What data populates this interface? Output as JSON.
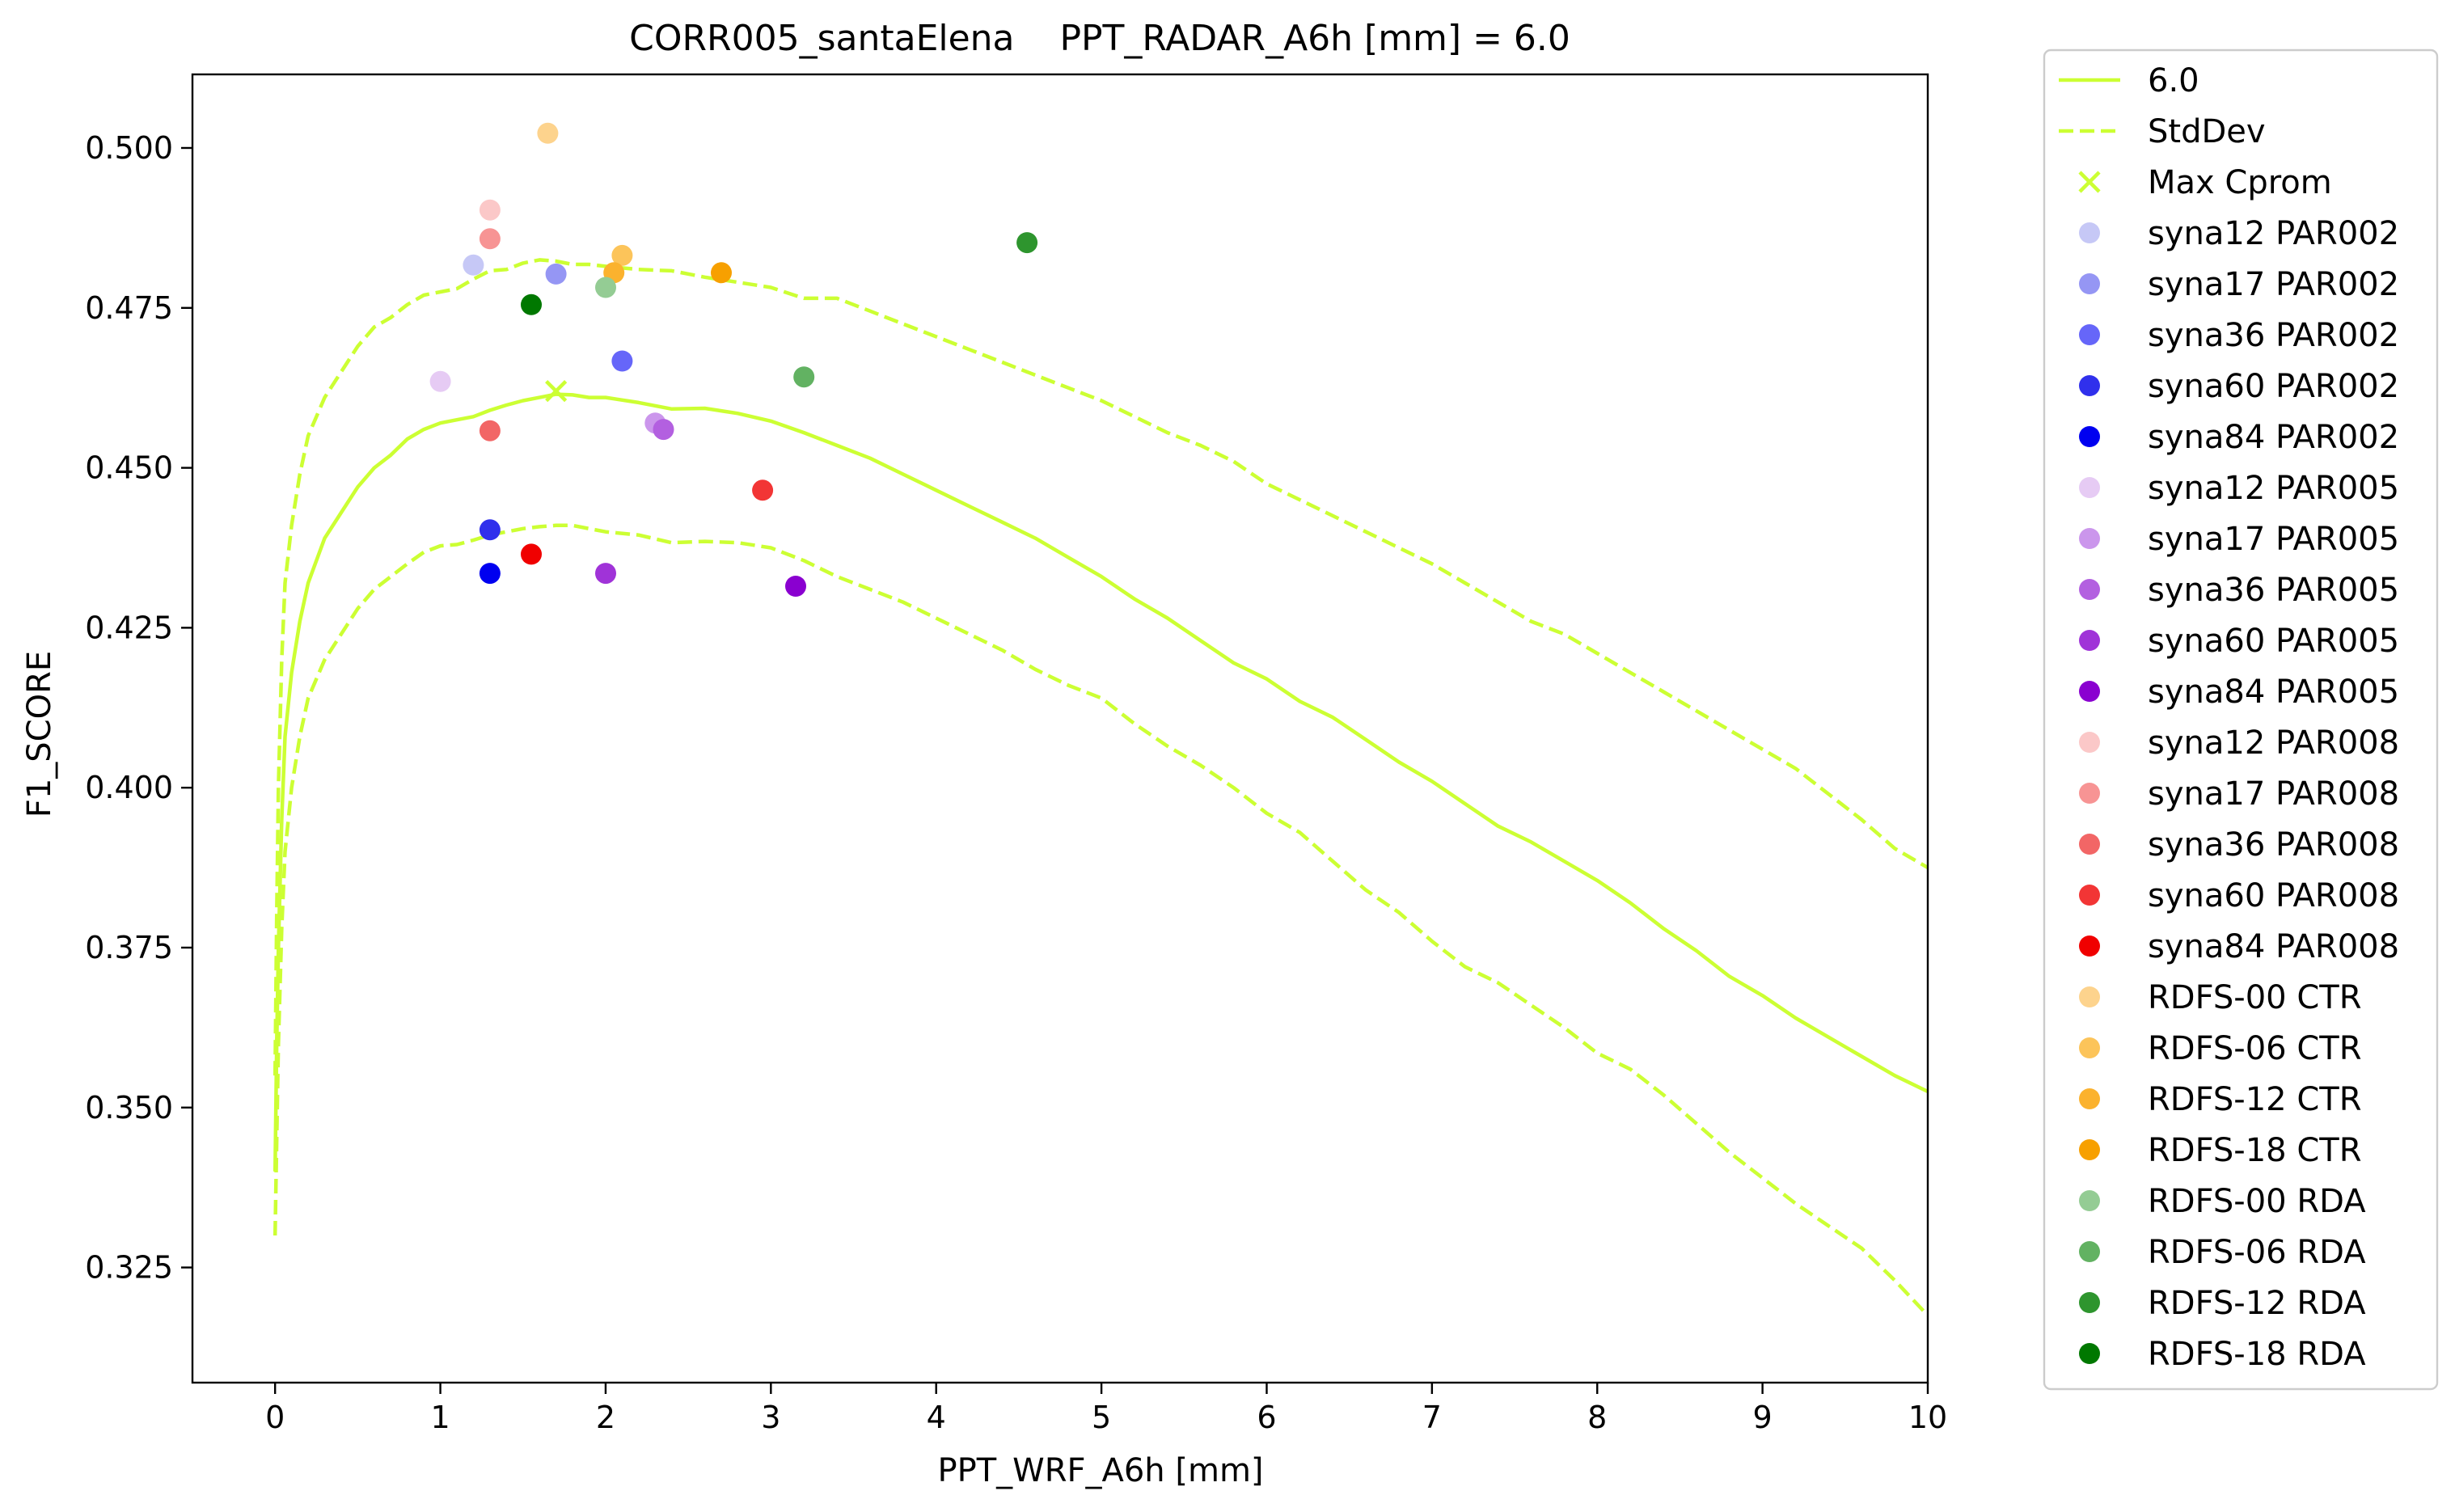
{
  "chart_data": {
    "type": "line",
    "title": "CORR005_santaElena    PPT_RADAR_A6h [mm] = 6.0",
    "xlabel": "PPT_WRF_A6h [mm]",
    "ylabel": "F1_SCORE",
    "xlim": [
      -0.5,
      10
    ],
    "ylim": [
      0.307,
      0.5115
    ],
    "xticks": [
      0,
      1,
      2,
      3,
      4,
      5,
      6,
      7,
      8,
      9,
      10
    ],
    "yticks": [
      0.325,
      0.35,
      0.375,
      0.4,
      0.425,
      0.45,
      0.475,
      0.5
    ],
    "ytick_labels": [
      "0.325",
      "0.350",
      "0.375",
      "0.400",
      "0.425",
      "0.450",
      "0.475",
      "0.500"
    ],
    "legend_position": "outside-right",
    "grid": false,
    "line_color": "#ccff33",
    "series": [
      {
        "name": "6.0",
        "style": "solid",
        "x": [
          0,
          0.01,
          0.02,
          0.04,
          0.06,
          0.1,
          0.15,
          0.2,
          0.3,
          0.4,
          0.5,
          0.6,
          0.7,
          0.8,
          0.9,
          1.0,
          1.1,
          1.2,
          1.3,
          1.4,
          1.5,
          1.6,
          1.7,
          1.8,
          1.9,
          2.0,
          2.2,
          2.4,
          2.6,
          2.8,
          3.0,
          3.2,
          3.4,
          3.6,
          3.8,
          4.0,
          4.2,
          4.4,
          4.6,
          4.8,
          5.0,
          5.2,
          5.4,
          5.6,
          5.8,
          6.0,
          6.2,
          6.4,
          6.6,
          6.8,
          7.0,
          7.2,
          7.4,
          7.6,
          7.8,
          8.0,
          8.2,
          8.4,
          8.6,
          8.8,
          9.0,
          9.2,
          9.4,
          9.6,
          9.8,
          10.0
        ],
        "y": [
          0.34,
          0.36,
          0.375,
          0.395,
          0.408,
          0.418,
          0.426,
          0.432,
          0.439,
          0.443,
          0.447,
          0.45,
          0.452,
          0.4545,
          0.456,
          0.457,
          0.4575,
          0.458,
          0.459,
          0.4598,
          0.4605,
          0.461,
          0.4615,
          0.4614,
          0.461,
          0.461,
          0.4602,
          0.4592,
          0.4593,
          0.4585,
          0.4573,
          0.4555,
          0.4535,
          0.4515,
          0.449,
          0.4465,
          0.444,
          0.4415,
          0.439,
          0.436,
          0.433,
          0.4295,
          0.4265,
          0.423,
          0.4195,
          0.417,
          0.4135,
          0.411,
          0.4075,
          0.404,
          0.401,
          0.3975,
          0.394,
          0.3915,
          0.3885,
          0.3855,
          0.382,
          0.378,
          0.3745,
          0.3705,
          0.3675,
          0.364,
          0.361,
          0.358,
          0.355,
          0.3525
        ]
      },
      {
        "name": "StdDev",
        "style": "dashed",
        "x": [
          0,
          0.01,
          0.02,
          0.04,
          0.06,
          0.1,
          0.15,
          0.2,
          0.3,
          0.4,
          0.5,
          0.6,
          0.7,
          0.8,
          0.9,
          1.0,
          1.1,
          1.2,
          1.3,
          1.4,
          1.5,
          1.6,
          1.7,
          1.8,
          1.9,
          2.0,
          2.2,
          2.4,
          2.6,
          2.8,
          3.0,
          3.2,
          3.4,
          3.6,
          3.8,
          4.0,
          4.2,
          4.4,
          4.6,
          4.8,
          5.0,
          5.2,
          5.4,
          5.6,
          5.8,
          6.0,
          6.2,
          6.4,
          6.6,
          6.8,
          7.0,
          7.2,
          7.4,
          7.6,
          7.8,
          8.0,
          8.2,
          8.4,
          8.6,
          8.8,
          9.0,
          9.2,
          9.4,
          9.6,
          9.8,
          10.0
        ],
        "y": [
          0.355,
          0.38,
          0.4,
          0.42,
          0.432,
          0.441,
          0.449,
          0.455,
          0.461,
          0.465,
          0.469,
          0.472,
          0.4735,
          0.4755,
          0.477,
          0.4775,
          0.478,
          0.4795,
          0.4808,
          0.481,
          0.482,
          0.4825,
          0.4823,
          0.4818,
          0.4818,
          0.4815,
          0.481,
          0.4808,
          0.4798,
          0.479,
          0.4782,
          0.4765,
          0.4765,
          0.4745,
          0.4725,
          0.4705,
          0.4685,
          0.4665,
          0.4645,
          0.4625,
          0.4605,
          0.458,
          0.4555,
          0.4535,
          0.451,
          0.4475,
          0.445,
          0.4425,
          0.44,
          0.4375,
          0.435,
          0.432,
          0.429,
          0.426,
          0.424,
          0.421,
          0.418,
          0.415,
          0.412,
          0.409,
          0.406,
          0.403,
          0.399,
          0.395,
          0.3905,
          0.3875
        ]
      },
      {
        "name": "StdDev (lower)",
        "style": "dashed",
        "x": [
          0,
          0.01,
          0.02,
          0.04,
          0.06,
          0.1,
          0.15,
          0.2,
          0.3,
          0.4,
          0.5,
          0.6,
          0.7,
          0.8,
          0.9,
          1.0,
          1.1,
          1.2,
          1.3,
          1.4,
          1.5,
          1.6,
          1.7,
          1.8,
          1.9,
          2.0,
          2.2,
          2.4,
          2.6,
          2.8,
          3.0,
          3.2,
          3.4,
          3.6,
          3.8,
          4.0,
          4.2,
          4.4,
          4.6,
          4.8,
          5.0,
          5.2,
          5.4,
          5.6,
          5.8,
          6.0,
          6.2,
          6.4,
          6.6,
          6.8,
          7.0,
          7.2,
          7.4,
          7.6,
          7.8,
          8.0,
          8.2,
          8.4,
          8.6,
          8.8,
          9.0,
          9.2,
          9.4,
          9.6,
          9.8,
          10.0
        ],
        "y": [
          0.33,
          0.345,
          0.36,
          0.378,
          0.39,
          0.4,
          0.408,
          0.414,
          0.42,
          0.424,
          0.428,
          0.431,
          0.433,
          0.435,
          0.4368,
          0.4378,
          0.438,
          0.4387,
          0.4395,
          0.44,
          0.4405,
          0.4408,
          0.441,
          0.441,
          0.4405,
          0.44,
          0.4395,
          0.4383,
          0.4385,
          0.4383,
          0.4375,
          0.4355,
          0.433,
          0.431,
          0.429,
          0.4265,
          0.424,
          0.4215,
          0.4185,
          0.416,
          0.414,
          0.41,
          0.4065,
          0.4035,
          0.4,
          0.396,
          0.393,
          0.3885,
          0.384,
          0.3805,
          0.376,
          0.372,
          0.3695,
          0.366,
          0.3625,
          0.3585,
          0.356,
          0.352,
          0.3475,
          0.343,
          0.339,
          0.335,
          0.3315,
          0.328,
          0.323,
          0.3175
        ]
      }
    ],
    "max_marker": {
      "name": "Max Cprom",
      "x": 1.7,
      "y": 0.462
    },
    "points": [
      {
        "name": "syna12 PAR002",
        "x": 1.2,
        "y": 0.4817,
        "color": "#c6c8f6"
      },
      {
        "name": "syna17 PAR002",
        "x": 1.7,
        "y": 0.4803,
        "color": "#9596f4"
      },
      {
        "name": "syna36 PAR002",
        "x": 2.1,
        "y": 0.4667,
        "color": "#6666f9"
      },
      {
        "name": "syna60 PAR002",
        "x": 1.3,
        "y": 0.4403,
        "color": "#3030ec"
      },
      {
        "name": "syna84 PAR002",
        "x": 1.3,
        "y": 0.4335,
        "color": "#0000f0"
      },
      {
        "name": "syna12 PAR005",
        "x": 1.0,
        "y": 0.4635,
        "color": "#e6cbf4"
      },
      {
        "name": "syna17 PAR005",
        "x": 2.3,
        "y": 0.457,
        "color": "#cb96ec"
      },
      {
        "name": "syna36 PAR005",
        "x": 2.35,
        "y": 0.456,
        "color": "#b360e0"
      },
      {
        "name": "syna60 PAR005",
        "x": 2.0,
        "y": 0.4335,
        "color": "#a033d8"
      },
      {
        "name": "syna84 PAR005",
        "x": 3.15,
        "y": 0.4315,
        "color": "#8a00d0"
      },
      {
        "name": "syna12 PAR008",
        "x": 1.3,
        "y": 0.4903,
        "color": "#fbc8c8"
      },
      {
        "name": "syna17 PAR008",
        "x": 1.3,
        "y": 0.4858,
        "color": "#f79494"
      },
      {
        "name": "syna36 PAR008",
        "x": 1.3,
        "y": 0.4558,
        "color": "#f26666"
      },
      {
        "name": "syna60 PAR008",
        "x": 2.95,
        "y": 0.4465,
        "color": "#f23535"
      },
      {
        "name": "syna84 PAR008",
        "x": 1.55,
        "y": 0.4365,
        "color": "#f00000"
      },
      {
        "name": "RDFS-00 CTR",
        "x": 1.65,
        "y": 0.5023,
        "color": "#fdd38d"
      },
      {
        "name": "RDFS-06 CTR",
        "x": 2.1,
        "y": 0.4832,
        "color": "#fcc45a"
      },
      {
        "name": "RDFS-12 CTR",
        "x": 2.05,
        "y": 0.4805,
        "color": "#fbb22e"
      },
      {
        "name": "RDFS-18 CTR",
        "x": 2.7,
        "y": 0.4805,
        "color": "#f7a000"
      },
      {
        "name": "RDFS-00 RDA",
        "x": 2.0,
        "y": 0.4782,
        "color": "#94cc94"
      },
      {
        "name": "RDFS-06 RDA",
        "x": 3.2,
        "y": 0.4642,
        "color": "#62b262"
      },
      {
        "name": "RDFS-12 RDA",
        "x": 4.55,
        "y": 0.4852,
        "color": "#2e952e"
      },
      {
        "name": "RDFS-18 RDA",
        "x": 1.55,
        "y": 0.4755,
        "color": "#007800"
      }
    ],
    "legend_entries": [
      "6.0",
      "StdDev",
      "Max Cprom",
      "syna12 PAR002",
      "syna17 PAR002",
      "syna36 PAR002",
      "syna60 PAR002",
      "syna84 PAR002",
      "syna12 PAR005",
      "syna17 PAR005",
      "syna36 PAR005",
      "syna60 PAR005",
      "syna84 PAR005",
      "syna12 PAR008",
      "syna17 PAR008",
      "syna36 PAR008",
      "syna60 PAR008",
      "syna84 PAR008",
      " RDFS-00 CTR",
      " RDFS-06 CTR",
      " RDFS-12 CTR",
      " RDFS-18 CTR",
      " RDFS-00 RDA",
      " RDFS-06 RDA",
      " RDFS-12 RDA",
      " RDFS-18 RDA"
    ]
  }
}
